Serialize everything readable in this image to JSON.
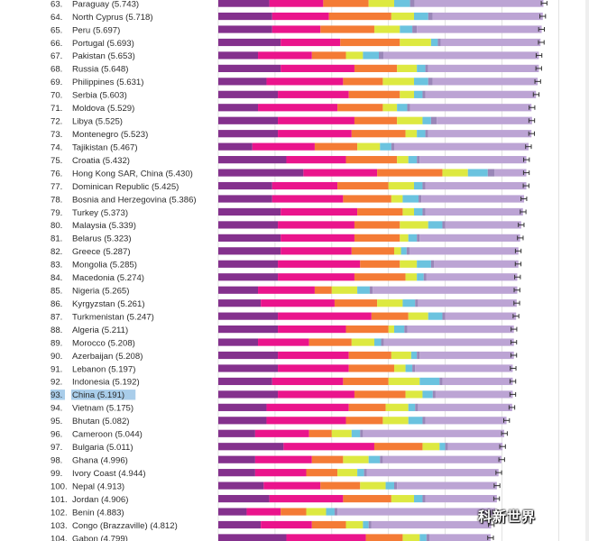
{
  "chart_data": {
    "type": "bar",
    "stacked": true,
    "orientation": "horizontal",
    "title": "",
    "xlabel": "",
    "ylabel": "",
    "xlim": [
      0,
      8
    ],
    "grid": true,
    "legend": "none",
    "highlight_label": "China (5.191)",
    "segment_colors": [
      "#84318d",
      "#ea148c",
      "#f47b35",
      "#dde941",
      "#6bc3df",
      "#9a87b8",
      "#bca4d4"
    ],
    "rows": [
      {
        "rank": "63.",
        "label": "Paraguay (5.743)",
        "score": 5.743,
        "segments": [
          0.9,
          0.95,
          0.8,
          0.45,
          0.28,
          0.08,
          2.27
        ],
        "ci": 0.05
      },
      {
        "rank": "64.",
        "label": "North Cyprus (5.718)",
        "score": 5.718,
        "segments": [
          0.95,
          1.0,
          1.1,
          0.4,
          0.25,
          0.08,
          1.94
        ],
        "ci": 0.05
      },
      {
        "rank": "65.",
        "label": "Peru (5.697)",
        "score": 5.697,
        "segments": [
          0.95,
          0.85,
          0.95,
          0.45,
          0.22,
          0.08,
          2.2
        ],
        "ci": 0.05
      },
      {
        "rank": "66.",
        "label": "Portugal (5.693)",
        "score": 5.693,
        "segments": [
          1.1,
          1.05,
          1.05,
          0.55,
          0.12,
          0.05,
          1.76
        ],
        "ci": 0.05
      },
      {
        "rank": "67.",
        "label": "Pakistan (5.653)",
        "score": 5.653,
        "segments": [
          0.7,
          0.95,
          0.6,
          0.3,
          0.28,
          0.08,
          2.74
        ],
        "ci": 0.05
      },
      {
        "rank": "68.",
        "label": "Russia (5.648)",
        "score": 5.648,
        "segments": [
          1.1,
          1.3,
          0.75,
          0.35,
          0.15,
          0.05,
          1.95
        ],
        "ci": 0.05
      },
      {
        "rank": "69.",
        "label": "Philippines (5.631)",
        "score": 5.631,
        "segments": [
          0.85,
          1.35,
          0.7,
          0.55,
          0.25,
          0.08,
          1.85
        ],
        "ci": 0.05
      },
      {
        "rank": "70.",
        "label": "Serbia (5.603)",
        "score": 5.603,
        "segments": [
          1.05,
          1.25,
          0.9,
          0.25,
          0.15,
          0.05,
          1.95
        ],
        "ci": 0.05
      },
      {
        "rank": "71.",
        "label": "Moldova (5.529)",
        "score": 5.529,
        "segments": [
          0.7,
          1.4,
          0.8,
          0.25,
          0.18,
          0.05,
          2.14
        ],
        "ci": 0.05
      },
      {
        "rank": "72.",
        "label": "Libya (5.525)",
        "score": 5.525,
        "segments": [
          1.05,
          1.35,
          0.75,
          0.45,
          0.15,
          0.1,
          1.68
        ],
        "ci": 0.05
      },
      {
        "rank": "73.",
        "label": "Montenegro (5.523)",
        "score": 5.523,
        "segments": [
          1.05,
          1.3,
          0.95,
          0.2,
          0.15,
          0.05,
          1.82
        ],
        "ci": 0.05
      },
      {
        "rank": "74.",
        "label": "Tajikistan (5.467)",
        "score": 5.467,
        "segments": [
          0.6,
          1.1,
          0.75,
          0.4,
          0.2,
          0.05,
          2.37
        ],
        "ci": 0.05
      },
      {
        "rank": "75.",
        "label": "Croatia (5.432)",
        "score": 5.432,
        "segments": [
          1.2,
          1.05,
          0.9,
          0.2,
          0.15,
          0.05,
          1.88
        ],
        "ci": 0.05
      },
      {
        "rank": "76.",
        "label": "Hong Kong SAR, China (5.430)",
        "score": 5.43,
        "segments": [
          1.5,
          1.3,
          1.15,
          0.45,
          0.35,
          0.12,
          0.56
        ],
        "ci": 0.05
      },
      {
        "rank": "77.",
        "label": "Dominican Republic (5.425)",
        "score": 5.425,
        "segments": [
          0.95,
          1.15,
          0.9,
          0.45,
          0.15,
          0.05,
          1.78
        ],
        "ci": 0.05
      },
      {
        "rank": "78.",
        "label": "Bosnia and Herzegovina (5.386)",
        "score": 5.386,
        "segments": [
          0.95,
          1.25,
          0.85,
          0.2,
          0.28,
          0.05,
          1.81
        ],
        "ci": 0.05
      },
      {
        "rank": "79.",
        "label": "Turkey (5.373)",
        "score": 5.373,
        "segments": [
          1.1,
          1.35,
          0.8,
          0.2,
          0.15,
          0.05,
          1.72
        ],
        "ci": 0.05
      },
      {
        "rank": "80.",
        "label": "Malaysia (5.339)",
        "score": 5.339,
        "segments": [
          1.05,
          1.35,
          0.8,
          0.5,
          0.25,
          0.05,
          1.34
        ],
        "ci": 0.05
      },
      {
        "rank": "81.",
        "label": "Belarus (5.323)",
        "score": 5.323,
        "segments": [
          1.1,
          1.3,
          0.8,
          0.15,
          0.15,
          0.05,
          1.77
        ],
        "ci": 0.05
      },
      {
        "rank": "82.",
        "label": "Greece (5.287)",
        "score": 5.287,
        "segments": [
          1.1,
          1.25,
          0.75,
          0.12,
          0.1,
          0.05,
          1.92
        ],
        "ci": 0.05
      },
      {
        "rank": "83.",
        "label": "Mongolia (5.285)",
        "score": 5.285,
        "segments": [
          1.05,
          1.45,
          0.7,
          0.3,
          0.25,
          0.05,
          1.49
        ],
        "ci": 0.05
      },
      {
        "rank": "84.",
        "label": "Macedonia (5.274)",
        "score": 5.274,
        "segments": [
          1.05,
          1.35,
          0.9,
          0.2,
          0.12,
          0.05,
          1.6
        ],
        "ci": 0.05
      },
      {
        "rank": "85.",
        "label": "Nigeria (5.265)",
        "score": 5.265,
        "segments": [
          0.7,
          1.0,
          0.3,
          0.45,
          0.22,
          0.05,
          2.55
        ],
        "ci": 0.05
      },
      {
        "rank": "86.",
        "label": "Kyrgyzstan (5.261)",
        "score": 5.261,
        "segments": [
          0.75,
          1.3,
          0.75,
          0.45,
          0.22,
          0.05,
          1.74
        ],
        "ci": 0.05
      },
      {
        "rank": "87.",
        "label": "Turkmenistan (5.247)",
        "score": 5.247,
        "segments": [
          1.05,
          1.65,
          0.65,
          0.35,
          0.25,
          0.05,
          1.25
        ],
        "ci": 0.05
      },
      {
        "rank": "88.",
        "label": "Algeria (5.211)",
        "score": 5.211,
        "segments": [
          1.05,
          1.2,
          0.75,
          0.1,
          0.18,
          0.05,
          1.88
        ],
        "ci": 0.05
      },
      {
        "rank": "89.",
        "label": "Morocco (5.208)",
        "score": 5.208,
        "segments": [
          0.7,
          0.9,
          0.75,
          0.4,
          0.12,
          0.05,
          2.29
        ],
        "ci": 0.05
      },
      {
        "rank": "90.",
        "label": "Azerbaijan (5.208)",
        "score": 5.208,
        "segments": [
          1.05,
          1.25,
          0.75,
          0.35,
          0.1,
          0.05,
          1.66
        ],
        "ci": 0.05
      },
      {
        "rank": "91.",
        "label": "Lebanon (5.197)",
        "score": 5.197,
        "segments": [
          1.05,
          1.25,
          0.8,
          0.2,
          0.12,
          0.05,
          1.72
        ],
        "ci": 0.05
      },
      {
        "rank": "92.",
        "label": "Indonesia (5.192)",
        "score": 5.192,
        "segments": [
          0.95,
          1.25,
          0.8,
          0.55,
          0.35,
          0.05,
          1.24
        ],
        "ci": 0.05
      },
      {
        "rank": "93.",
        "label": "China (5.191)",
        "score": 5.191,
        "segments": [
          1.05,
          1.35,
          0.9,
          0.3,
          0.18,
          0.05,
          1.36
        ],
        "ci": 0.05
      },
      {
        "rank": "94.",
        "label": "Vietnam (5.175)",
        "score": 5.175,
        "segments": [
          0.85,
          1.45,
          0.65,
          0.4,
          0.12,
          0.05,
          1.66
        ],
        "ci": 0.05
      },
      {
        "rank": "95.",
        "label": "Bhutan (5.082)",
        "score": 5.082,
        "segments": [
          0.85,
          1.4,
          0.65,
          0.45,
          0.25,
          0.05,
          1.43
        ],
        "ci": 0.05
      },
      {
        "rank": "96.",
        "label": "Cameroon (5.044)",
        "score": 5.044,
        "segments": [
          0.65,
          0.95,
          0.4,
          0.35,
          0.15,
          0.05,
          2.49
        ],
        "ci": 0.05
      },
      {
        "rank": "97.",
        "label": "Bulgaria (5.011)",
        "score": 5.011,
        "segments": [
          1.15,
          1.6,
          0.85,
          0.3,
          0.1,
          0.05,
          0.96
        ],
        "ci": 0.05
      },
      {
        "rank": "98.",
        "label": "Ghana (4.996)",
        "score": 4.996,
        "segments": [
          0.65,
          1.0,
          0.55,
          0.45,
          0.2,
          0.05,
          2.09
        ],
        "ci": 0.05
      },
      {
        "rank": "99.",
        "label": "Ivory Coast (4.944)",
        "score": 4.944,
        "segments": [
          0.65,
          0.9,
          0.55,
          0.35,
          0.12,
          0.05,
          2.32
        ],
        "ci": 0.05
      },
      {
        "rank": "100.",
        "label": "Nepal (4.913)",
        "score": 4.913,
        "segments": [
          0.8,
          1.0,
          0.7,
          0.45,
          0.15,
          0.05,
          1.76
        ],
        "ci": 0.05
      },
      {
        "rank": "101.",
        "label": "Jordan (4.906)",
        "score": 4.906,
        "segments": [
          0.9,
          1.3,
          0.85,
          0.4,
          0.15,
          0.05,
          1.26
        ],
        "ci": 0.05
      },
      {
        "rank": "102.",
        "label": "Benin (4.883)",
        "score": 4.883,
        "segments": [
          0.5,
          0.6,
          0.45,
          0.35,
          0.15,
          0.05,
          2.78
        ],
        "ci": 0.05
      },
      {
        "rank": "103.",
        "label": "Congo (Brazzaville) (4.812)",
        "score": 4.812,
        "segments": [
          0.75,
          0.9,
          0.6,
          0.3,
          0.1,
          0.05,
          2.11
        ],
        "ci": 0.05
      },
      {
        "rank": "104.",
        "label": "Gabon (4.799)",
        "score": 4.799,
        "segments": [
          1.2,
          1.4,
          0.65,
          0.3,
          0.12,
          0.05,
          1.08
        ],
        "ci": 0.05
      }
    ]
  },
  "watermark": "科新世界"
}
